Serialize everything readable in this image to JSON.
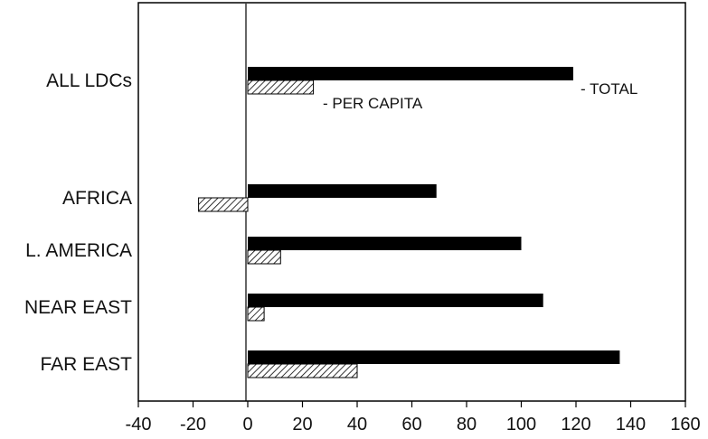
{
  "chart_data": {
    "type": "bar",
    "orientation": "horizontal",
    "categories": [
      "ALL LDCs",
      "AFRICA",
      "L. AMERICA",
      "NEAR EAST",
      "FAR EAST"
    ],
    "series": [
      {
        "name": "TOTAL",
        "values": [
          119,
          69,
          100,
          108,
          136
        ],
        "color": "#000000",
        "pattern": "solid"
      },
      {
        "name": "PER CAPITA",
        "values": [
          24,
          -18,
          12,
          6,
          40
        ],
        "color": "#000000",
        "pattern": "hatched"
      }
    ],
    "xlim": [
      -40,
      160
    ],
    "xticks": [
      -40,
      -20,
      0,
      20,
      40,
      60,
      80,
      100,
      120,
      140,
      160
    ],
    "title": "",
    "xlabel": "",
    "ylabel": "",
    "grid": false,
    "legend": "inline labels beside ALL LDCs bars"
  },
  "legend": {
    "total_label": "- TOTAL",
    "per_capita_label": "- PER CAPITA"
  }
}
